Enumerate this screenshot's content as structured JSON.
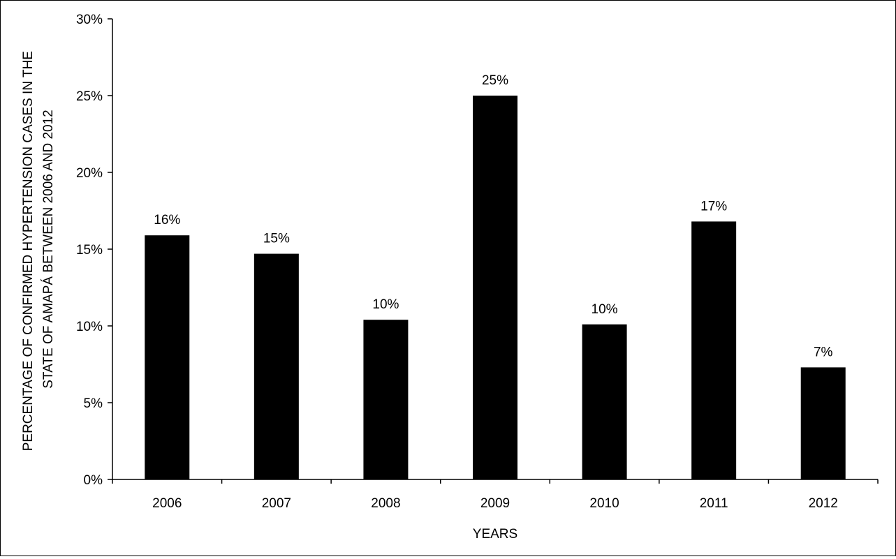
{
  "chart_data": {
    "type": "bar",
    "categories": [
      "2006",
      "2007",
      "2008",
      "2009",
      "2010",
      "2011",
      "2012"
    ],
    "values": [
      15.9,
      14.7,
      10.4,
      25.0,
      10.1,
      16.8,
      7.3
    ],
    "data_labels": [
      "16%",
      "15%",
      "10%",
      "25%",
      "10%",
      "17%",
      "7%"
    ],
    "xlabel": "YEARS",
    "ylabel_lines": [
      "PERCENTAGE OF CONFIRMED HYPERTENSION CASES IN THE",
      "STATE OF AMAPÁ BETWEEN 2006 AND 2012"
    ],
    "ylim": [
      0,
      30
    ],
    "yticks": [
      0,
      5,
      10,
      15,
      20,
      25,
      30
    ],
    "ytick_labels": [
      "0%",
      "5%",
      "10%",
      "15%",
      "20%",
      "25%",
      "30%"
    ],
    "grid": false,
    "legend": "none",
    "bar_color": "#000000"
  }
}
